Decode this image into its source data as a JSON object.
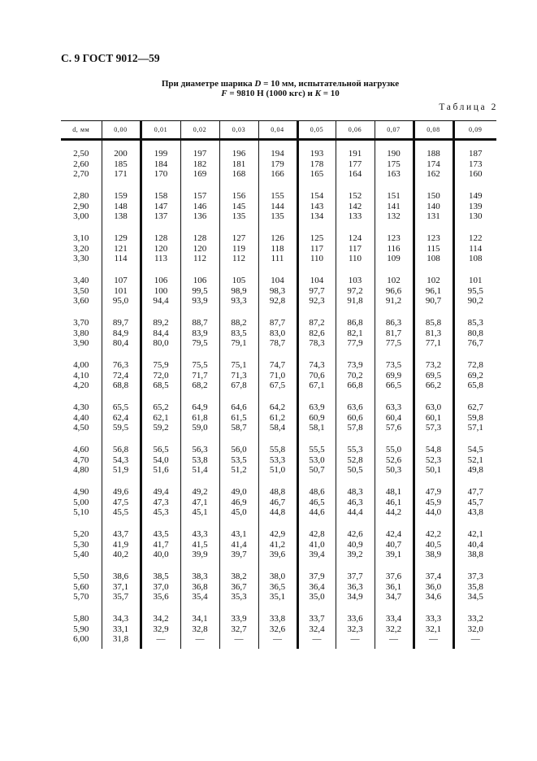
{
  "page_header": "С. 9 ГОСТ 9012—59",
  "subtitle": {
    "line1": [
      "При диаметре шарика ",
      "D",
      " = 10 мм, испытательной нагрузке"
    ],
    "line2": [
      "F",
      " = 9810 Н (1000 кгс) и ",
      "K",
      " = 10"
    ]
  },
  "table_label": "Таблица 2",
  "table": {
    "headers": [
      "d, мм",
      "0,00",
      "0,01",
      "0,02",
      "0,03",
      "0,04",
      "0,05",
      "0,06",
      "0,07",
      "0,08",
      "0,09"
    ],
    "rows": [
      [
        "2,50",
        "200",
        "199",
        "197",
        "196",
        "194",
        "193",
        "191",
        "190",
        "188",
        "187"
      ],
      [
        "2,60",
        "185",
        "184",
        "182",
        "181",
        "179",
        "178",
        "177",
        "175",
        "174",
        "173"
      ],
      [
        "2,70",
        "171",
        "170",
        "169",
        "168",
        "166",
        "165",
        "164",
        "163",
        "162",
        "160"
      ],
      [
        "2,80",
        "159",
        "158",
        "157",
        "156",
        "155",
        "154",
        "152",
        "151",
        "150",
        "149"
      ],
      [
        "2,90",
        "148",
        "147",
        "146",
        "145",
        "144",
        "143",
        "142",
        "141",
        "140",
        "139"
      ],
      [
        "3,00",
        "138",
        "137",
        "136",
        "135",
        "135",
        "134",
        "133",
        "132",
        "131",
        "130"
      ],
      [
        "3,10",
        "129",
        "128",
        "128",
        "127",
        "126",
        "125",
        "124",
        "123",
        "123",
        "122"
      ],
      [
        "3,20",
        "121",
        "120",
        "120",
        "119",
        "118",
        "117",
        "117",
        "116",
        "115",
        "114"
      ],
      [
        "3,30",
        "114",
        "113",
        "112",
        "112",
        "111",
        "110",
        "110",
        "109",
        "108",
        "108"
      ],
      [
        "3,40",
        "107",
        "106",
        "106",
        "105",
        "104",
        "104",
        "103",
        "102",
        "102",
        "101"
      ],
      [
        "3,50",
        "101",
        "100",
        "99,5",
        "98,9",
        "98,3",
        "97,7",
        "97,2",
        "96,6",
        "96,1",
        "95,5"
      ],
      [
        "3,60",
        "95,0",
        "94,4",
        "93,9",
        "93,3",
        "92,8",
        "92,3",
        "91,8",
        "91,2",
        "90,7",
        "90,2"
      ],
      [
        "3,70",
        "89,7",
        "89,2",
        "88,7",
        "88,2",
        "87,7",
        "87,2",
        "86,8",
        "86,3",
        "85,8",
        "85,3"
      ],
      [
        "3,80",
        "84,9",
        "84,4",
        "83,9",
        "83,5",
        "83,0",
        "82,6",
        "82,1",
        "81,7",
        "81,3",
        "80,8"
      ],
      [
        "3,90",
        "80,4",
        "80,0",
        "79,5",
        "79,1",
        "78,7",
        "78,3",
        "77,9",
        "77,5",
        "77,1",
        "76,7"
      ],
      [
        "4,00",
        "76,3",
        "75,9",
        "75,5",
        "75,1",
        "74,7",
        "74,3",
        "73,9",
        "73,5",
        "73,2",
        "72,8"
      ],
      [
        "4,10",
        "72,4",
        "72,0",
        "71,7",
        "71,3",
        "71,0",
        "70,6",
        "70,2",
        "69,9",
        "69,5",
        "69,2"
      ],
      [
        "4,20",
        "68,8",
        "68,5",
        "68,2",
        "67,8",
        "67,5",
        "67,1",
        "66,8",
        "66,5",
        "66,2",
        "65,8"
      ],
      [
        "4,30",
        "65,5",
        "65,2",
        "64,9",
        "64,6",
        "64,2",
        "63,9",
        "63,6",
        "63,3",
        "63,0",
        "62,7"
      ],
      [
        "4,40",
        "62,4",
        "62,1",
        "61,8",
        "61,5",
        "61,2",
        "60,9",
        "60,6",
        "60,4",
        "60,1",
        "59,8"
      ],
      [
        "4,50",
        "59,5",
        "59,2",
        "59,0",
        "58,7",
        "58,4",
        "58,1",
        "57,8",
        "57,6",
        "57,3",
        "57,1"
      ],
      [
        "4,60",
        "56,8",
        "56,5",
        "56,3",
        "56,0",
        "55,8",
        "55,5",
        "55,3",
        "55,0",
        "54,8",
        "54,5"
      ],
      [
        "4,70",
        "54,3",
        "54,0",
        "53,8",
        "53,5",
        "53,3",
        "53,0",
        "52,8",
        "52,6",
        "52,3",
        "52,1"
      ],
      [
        "4,80",
        "51,9",
        "51,6",
        "51,4",
        "51,2",
        "51,0",
        "50,7",
        "50,5",
        "50,3",
        "50,1",
        "49,8"
      ],
      [
        "4,90",
        "49,6",
        "49,4",
        "49,2",
        "49,0",
        "48,8",
        "48,6",
        "48,3",
        "48,1",
        "47,9",
        "47,7"
      ],
      [
        "5,00",
        "47,5",
        "47,3",
        "47,1",
        "46,9",
        "46,7",
        "46,5",
        "46,3",
        "46,1",
        "45,9",
        "45,7"
      ],
      [
        "5,10",
        "45,5",
        "45,3",
        "45,1",
        "45,0",
        "44,8",
        "44,6",
        "44,4",
        "44,2",
        "44,0",
        "43,8"
      ],
      [
        "5,20",
        "43,7",
        "43,5",
        "43,3",
        "43,1",
        "42,9",
        "42,8",
        "42,6",
        "42,4",
        "42,2",
        "42,1"
      ],
      [
        "5,30",
        "41,9",
        "41,7",
        "41,5",
        "41,4",
        "41,2",
        "41,0",
        "40,9",
        "40,7",
        "40,5",
        "40,4"
      ],
      [
        "5,40",
        "40,2",
        "40,0",
        "39,9",
        "39,7",
        "39,6",
        "39,4",
        "39,2",
        "39,1",
        "38,9",
        "38,8"
      ],
      [
        "5,50",
        "38,6",
        "38,5",
        "38,3",
        "38,2",
        "38,0",
        "37,9",
        "37,7",
        "37,6",
        "37,4",
        "37,3"
      ],
      [
        "5,60",
        "37,1",
        "37,0",
        "36,8",
        "36,7",
        "36,5",
        "36,4",
        "36,3",
        "36,1",
        "36,0",
        "35,8"
      ],
      [
        "5,70",
        "35,7",
        "35,6",
        "35,4",
        "35,3",
        "35,1",
        "35,0",
        "34,9",
        "34,7",
        "34,6",
        "34,5"
      ],
      [
        "5,80",
        "34,3",
        "34,2",
        "34,1",
        "33,9",
        "33,8",
        "33,7",
        "33,6",
        "33,4",
        "33,3",
        "33,2"
      ],
      [
        "5,90",
        "33,1",
        "32,9",
        "32,8",
        "32,7",
        "32,6",
        "32,4",
        "32,3",
        "32,2",
        "32,1",
        "32,0"
      ],
      [
        "6,00",
        "31,8",
        "—",
        "—",
        "—",
        "—",
        "—",
        "—",
        "—",
        "—",
        "—"
      ]
    ]
  }
}
